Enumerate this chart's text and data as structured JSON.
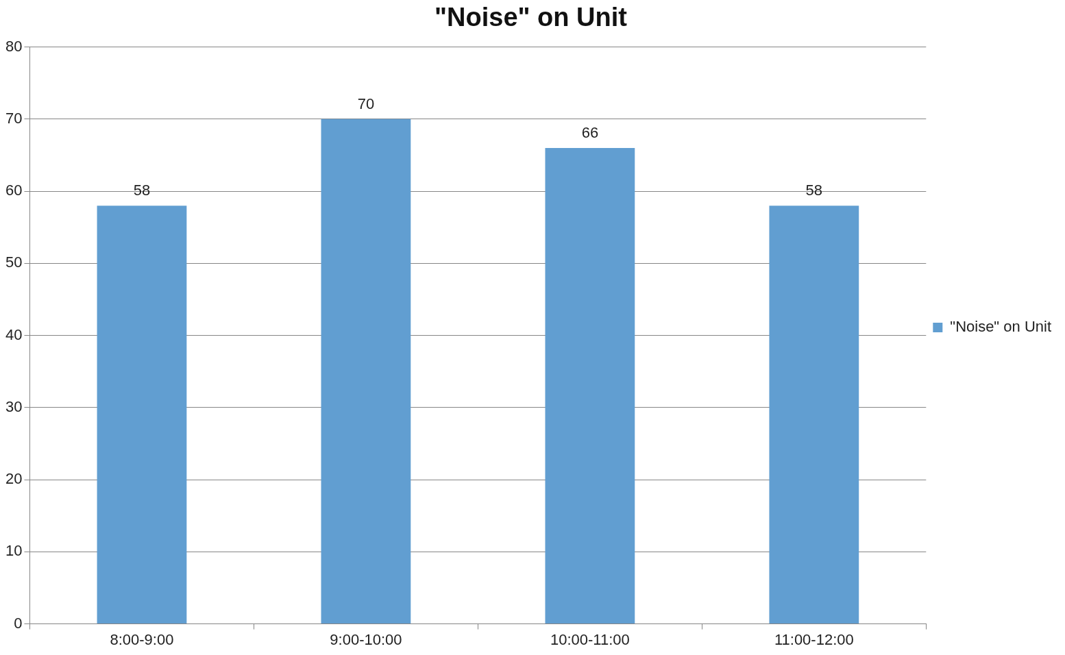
{
  "chart_data": {
    "type": "bar",
    "title": "\"Noise\" on Unit",
    "categories": [
      "8:00-9:00",
      "9:00-10:00",
      "10:00-11:00",
      "11:00-12:00"
    ],
    "series": [
      {
        "name": "\"Noise\" on Unit",
        "color": "#619ed1",
        "values": [
          58,
          70,
          66,
          58
        ]
      }
    ],
    "ylim": [
      0,
      80
    ],
    "yticks": [
      0,
      10,
      20,
      30,
      40,
      50,
      60,
      70,
      80
    ],
    "grid": "y",
    "legend": "right",
    "data_labels": true
  }
}
